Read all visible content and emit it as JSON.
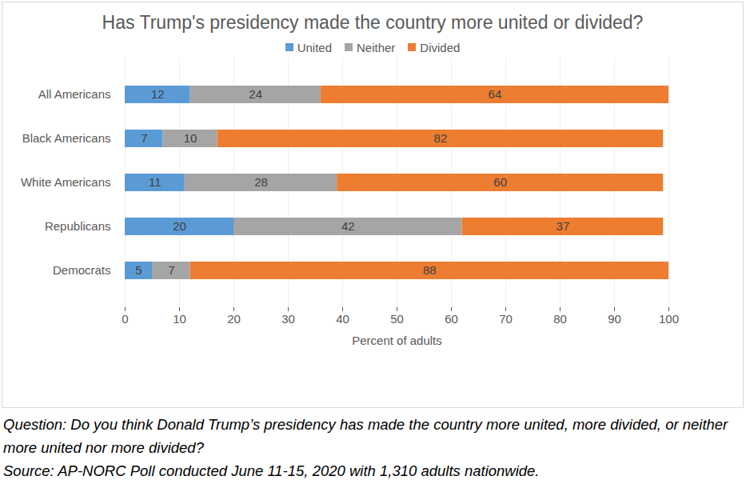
{
  "chart_data": {
    "type": "bar",
    "orientation": "horizontal",
    "stacked": true,
    "title": "Has Trump's presidency made the country more united or divided?",
    "caption": [
      "Question: Do you think Donald Trump’s presidency has made the country more united, more divided, or neither more united nor more divided?",
      "Source: AP-NORC Poll conducted June 11-15, 2020 with 1,310 adults nationwide."
    ],
    "x_label": "Percent of adults",
    "categories": [
      "All Americans",
      "Black Americans",
      "White Americans",
      "Republicans",
      "Democrats"
    ],
    "series": [
      {
        "name": "United",
        "color": "#5b9bd5",
        "values": [
          12,
          7,
          11,
          20,
          5
        ]
      },
      {
        "name": "Neither",
        "color": "#a5a5a5",
        "values": [
          24,
          10,
          28,
          42,
          7
        ]
      },
      {
        "name": "Divided",
        "color": "#ed7d31",
        "values": [
          64,
          82,
          60,
          37,
          88
        ]
      }
    ],
    "xlim": [
      0,
      100
    ],
    "xticks": [
      0,
      10,
      20,
      30,
      40,
      50,
      60,
      70,
      80,
      90,
      100
    ],
    "grid": true,
    "legend": "top",
    "data_labels": true
  }
}
